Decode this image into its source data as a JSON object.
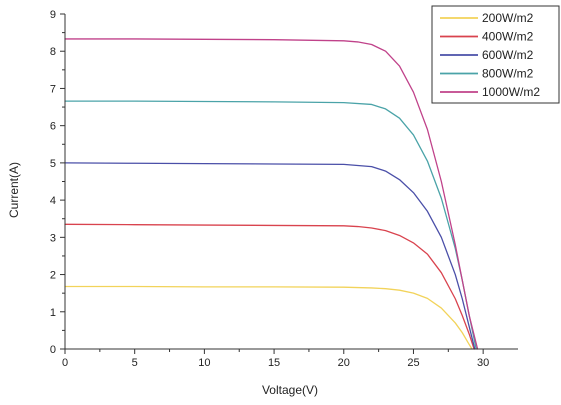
{
  "chart_data": {
    "type": "line",
    "xlabel": "Voltage(V)",
    "ylabel": "Current(A)",
    "xlim": [
      0,
      32.5
    ],
    "ylim": [
      0,
      9
    ],
    "xticks": [
      "0",
      "5",
      "10",
      "15",
      "20",
      "25",
      "30"
    ],
    "yticks": [
      "0",
      "1",
      "2",
      "3",
      "4",
      "5",
      "6",
      "7",
      "8",
      "9"
    ],
    "grid": false,
    "legend_position": "top-right",
    "series": [
      {
        "name": "200W/m2",
        "color": "#f2d35a",
        "x": [
          0,
          5,
          10,
          15,
          20,
          22,
          23,
          24,
          25,
          26,
          27,
          28,
          28.5,
          29,
          29.2
        ],
        "y": [
          1.68,
          1.68,
          1.67,
          1.67,
          1.66,
          1.64,
          1.62,
          1.58,
          1.5,
          1.36,
          1.1,
          0.7,
          0.44,
          0.12,
          0.0
        ]
      },
      {
        "name": "400W/m2",
        "color": "#d9434e",
        "x": [
          0,
          5,
          10,
          15,
          20,
          21,
          22,
          23,
          24,
          25,
          26,
          27,
          28,
          28.5,
          29,
          29.35
        ],
        "y": [
          3.35,
          3.34,
          3.33,
          3.32,
          3.31,
          3.29,
          3.25,
          3.18,
          3.05,
          2.85,
          2.55,
          2.05,
          1.35,
          0.9,
          0.4,
          0.0
        ]
      },
      {
        "name": "600W/m2",
        "color": "#4a4fa8",
        "x": [
          0,
          5,
          10,
          15,
          20,
          22,
          23,
          24,
          25,
          26,
          27,
          28,
          28.5,
          29,
          29.4
        ],
        "y": [
          5.0,
          4.99,
          4.98,
          4.97,
          4.96,
          4.9,
          4.78,
          4.55,
          4.2,
          3.7,
          3.0,
          2.0,
          1.35,
          0.6,
          0.0
        ]
      },
      {
        "name": "800W/m2",
        "color": "#4aa3a8",
        "x": [
          0,
          5,
          10,
          15,
          20,
          22,
          23,
          24,
          25,
          26,
          27,
          28,
          28.5,
          29,
          29.5
        ],
        "y": [
          6.66,
          6.66,
          6.65,
          6.64,
          6.62,
          6.57,
          6.45,
          6.2,
          5.75,
          5.05,
          4.05,
          2.7,
          1.85,
          0.9,
          0.0
        ]
      },
      {
        "name": "1000W/m2",
        "color": "#c0428a",
        "x": [
          0,
          5,
          10,
          15,
          20,
          21,
          22,
          23,
          24,
          25,
          26,
          27,
          28,
          28.5,
          29,
          29.6
        ],
        "y": [
          8.33,
          8.33,
          8.32,
          8.31,
          8.28,
          8.25,
          8.18,
          8.0,
          7.6,
          6.9,
          5.9,
          4.5,
          2.8,
          1.85,
          0.9,
          0.0
        ]
      }
    ]
  }
}
